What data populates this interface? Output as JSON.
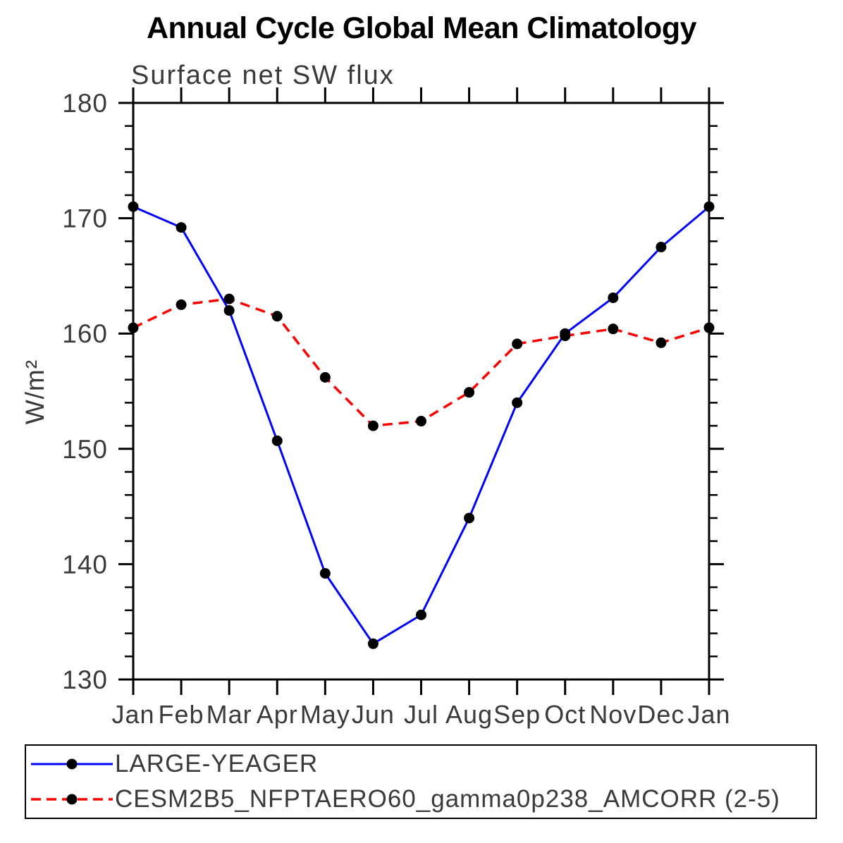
{
  "page": {
    "title": "Annual Cycle Global Mean Climatology",
    "subtitle": "Surface net SW flux"
  },
  "legend": {
    "items": [
      {
        "label": "LARGE-YEAGER",
        "color": "#0000ff",
        "line_style": "solid",
        "marker": "filled-circle",
        "marker_color": "#000000"
      },
      {
        "label": "CESM2B5_NFPTAERO60_gamma0p238_AMCORR (2-5)",
        "color": "#ff0000",
        "line_style": "dashed",
        "marker": "filled-circle",
        "marker_color": "#000000"
      }
    ]
  },
  "chart_data": {
    "type": "line",
    "title": "Annual Cycle Global Mean Climatology",
    "subtitle": "Surface net SW flux",
    "xlabel": "",
    "ylabel": "W/m²",
    "categories": [
      "Jan",
      "Feb",
      "Mar",
      "Apr",
      "May",
      "Jun",
      "Jul",
      "Aug",
      "Sep",
      "Oct",
      "Nov",
      "Dec",
      "Jan"
    ],
    "series": [
      {
        "name": "LARGE-YEAGER",
        "color": "#0000ff",
        "line_style": "solid",
        "line_width": 3,
        "marker": "filled-circle",
        "marker_color": "#000000",
        "values": [
          171.0,
          169.2,
          162.0,
          150.7,
          139.2,
          133.1,
          135.6,
          144.0,
          154.0,
          160.0,
          163.1,
          167.5,
          171.0
        ]
      },
      {
        "name": "CESM2B5_NFPTAERO60_gamma0p238_AMCORR (2-5)",
        "color": "#ff0000",
        "line_style": "dashed",
        "line_width": 3.5,
        "marker": "filled-circle",
        "marker_color": "#000000",
        "values": [
          160.5,
          162.5,
          163.0,
          161.5,
          156.2,
          152.0,
          152.4,
          154.9,
          159.1,
          159.8,
          160.4,
          159.2,
          160.5
        ]
      }
    ],
    "ylim": [
      130,
      180
    ],
    "yticks_major": [
      130,
      140,
      150,
      160,
      170,
      180
    ],
    "ytick_minor_step": 2,
    "grid": "off",
    "legend_position": "bottom",
    "axis_color": "#000000",
    "tick_label_color": "#3a3a3a"
  }
}
